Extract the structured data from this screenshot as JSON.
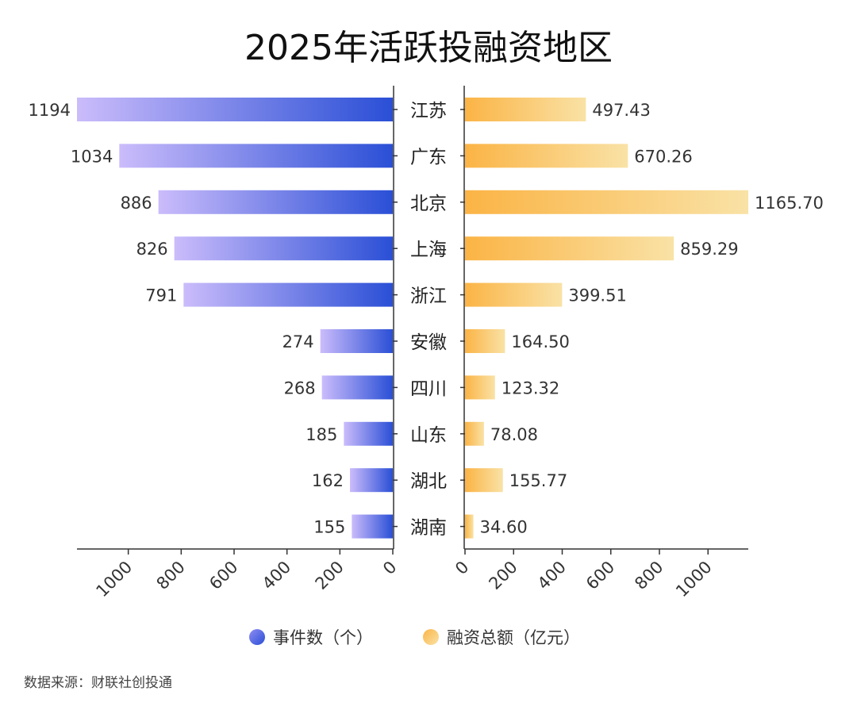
{
  "chart_data": {
    "type": "bar",
    "title": "2025年活跃投融资地区",
    "categories": [
      "江苏",
      "广东",
      "北京",
      "上海",
      "浙江",
      "安徽",
      "四川",
      "山东",
      "湖北",
      "湖南"
    ],
    "series": [
      {
        "name": "事件数（个）",
        "values": [
          1194,
          1034,
          886,
          826,
          791,
          274,
          268,
          185,
          162,
          155
        ],
        "value_labels": [
          "1194",
          "1034",
          "886",
          "826",
          "791",
          "274",
          "268",
          "185",
          "162",
          "155"
        ],
        "color_start": "#cbbcfb",
        "color_end": "#2a4fd6",
        "direction": "left",
        "xlim": [
          0,
          1194
        ],
        "ticks": [
          0,
          200,
          400,
          600,
          800,
          1000
        ],
        "tick_labels": [
          "0",
          "200",
          "400",
          "600",
          "800",
          "1000"
        ]
      },
      {
        "name": "融资总额（亿元）",
        "values": [
          497.43,
          670.26,
          1165.7,
          859.29,
          399.51,
          164.5,
          123.32,
          78.08,
          155.77,
          34.6
        ],
        "value_labels": [
          "497.43",
          "670.26",
          "1165.70",
          "859.29",
          "399.51",
          "164.50",
          "123.32",
          "78.08",
          "155.77",
          "34.60"
        ],
        "color_start": "#fbb445",
        "color_end": "#f9e2a6",
        "direction": "right",
        "xlim": [
          0,
          1165.7
        ],
        "ticks": [
          0,
          200,
          400,
          600,
          800,
          1000
        ],
        "tick_labels": [
          "0",
          "200",
          "400",
          "600",
          "800",
          "1000"
        ]
      }
    ],
    "legend_position": "bottom",
    "grid": false
  },
  "source": "数据来源：财联社创投通",
  "colors": {
    "axis": "#333333",
    "legend_marker_1": "#4a63e0",
    "legend_marker_2": "#fbc965"
  }
}
